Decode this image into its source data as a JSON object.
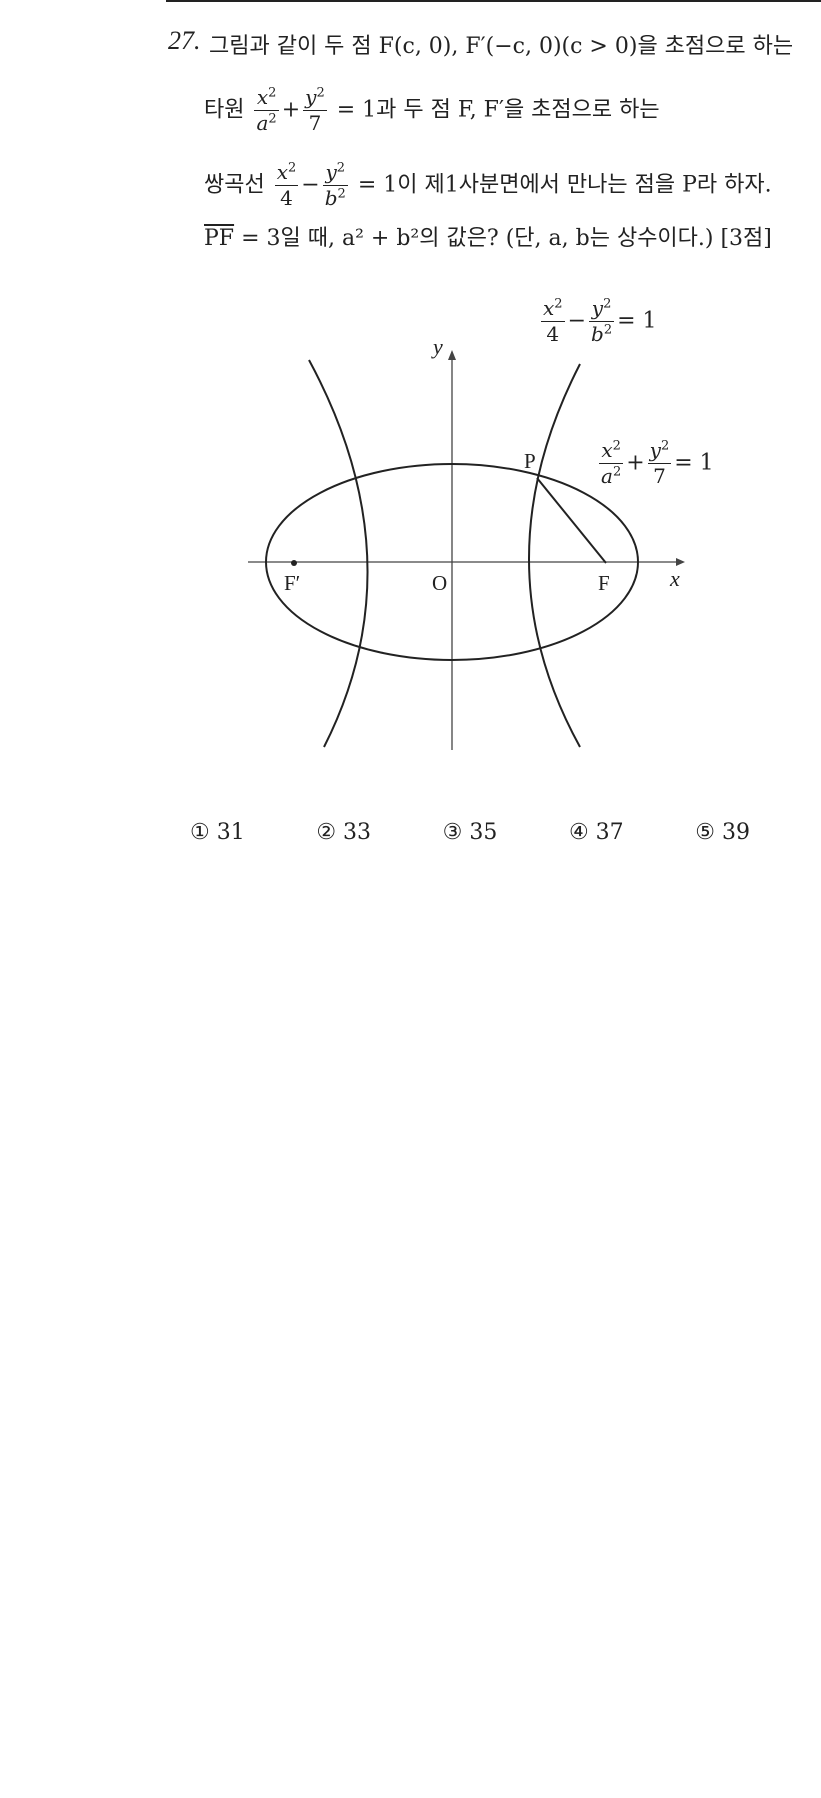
{
  "problem": {
    "number": "27.",
    "line1": "그림과 같이 두 점 F(c, 0), F′(−c, 0)(c > 0)을 초점으로 하는",
    "line2_prefix": "타원",
    "line2_suffix": "= 1과 두 점 F, F′을 초점으로 하는",
    "line3_prefix": "쌍곡선",
    "line3_suffix": "= 1이 제1사분면에서 만나는 점을 P라 하자.",
    "line4_segment": "PF",
    "line4_rest": "= 3일 때, a² + b²의 값은? (단, a, b는 상수이다.) [3점]"
  },
  "figure": {
    "label_y": "y",
    "label_x": "x",
    "label_origin": "O",
    "label_F": "F",
    "label_F_prime": "F′",
    "label_P": "P",
    "hyperbola_eq": "x²/4 − y²/b² = 1",
    "ellipse_eq": "x²/a² + y²/7 = 1"
  },
  "choices": [
    {
      "mark": "①",
      "value": "31"
    },
    {
      "mark": "②",
      "value": "33"
    },
    {
      "mark": "③",
      "value": "35"
    },
    {
      "mark": "④",
      "value": "37"
    },
    {
      "mark": "⑤",
      "value": "39"
    }
  ]
}
